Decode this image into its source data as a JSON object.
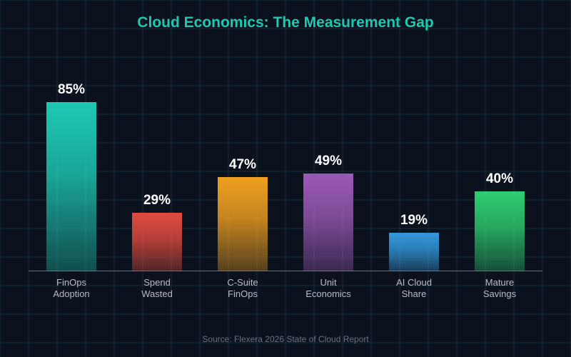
{
  "title": "Cloud Economics: The Measurement Gap",
  "source": "Source: Flexera 2026 State of Cloud Report",
  "chart_data": {
    "type": "bar",
    "title": "Cloud Economics: The Measurement Gap",
    "xlabel": "",
    "ylabel": "",
    "ylim": [
      0,
      100
    ],
    "grid": true,
    "legend": "none",
    "categories": [
      [
        "FinOps",
        "Adoption"
      ],
      [
        "Spend",
        "Wasted"
      ],
      [
        "C-Suite",
        "FinOps"
      ],
      [
        "Unit",
        "Economics"
      ],
      [
        "AI Cloud",
        "Share"
      ],
      [
        "Mature",
        "Savings"
      ]
    ],
    "values": [
      85,
      29,
      47,
      49,
      19,
      40
    ],
    "value_labels": [
      "85%",
      "29%",
      "47%",
      "49%",
      "19%",
      "40%"
    ],
    "colors": [
      "#1ec8b4",
      "#e04b3f",
      "#f0a020",
      "#9b59b6",
      "#3498db",
      "#2ecc71"
    ]
  }
}
